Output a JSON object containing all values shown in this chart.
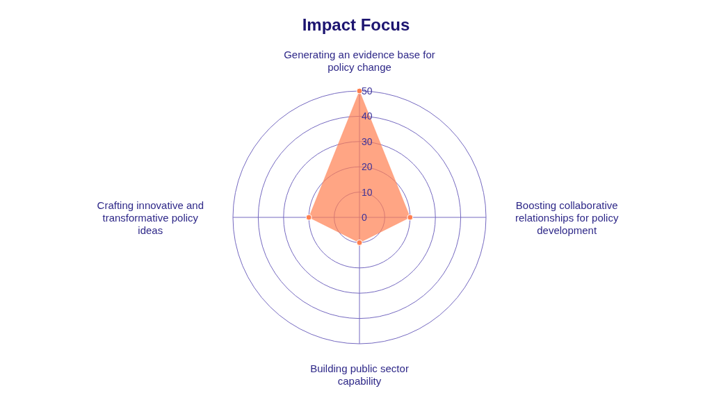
{
  "chart_data": {
    "type": "radar",
    "title": "Impact Focus",
    "categories": [
      "Generating an evidence base for\npolicy change",
      "Boosting collaborative\nrelationships for policy\ndevelopment",
      "Building public sector\ncapability",
      "Crafting innovative and\ntransformative policy\nideas"
    ],
    "series": [
      {
        "color": "#ff7f50",
        "values": [
          50,
          20,
          10,
          20
        ]
      }
    ],
    "ylim": [
      0,
      50
    ],
    "yticks": [
      0,
      10,
      20,
      30,
      40,
      50
    ],
    "grid": true,
    "marker": "circle"
  }
}
